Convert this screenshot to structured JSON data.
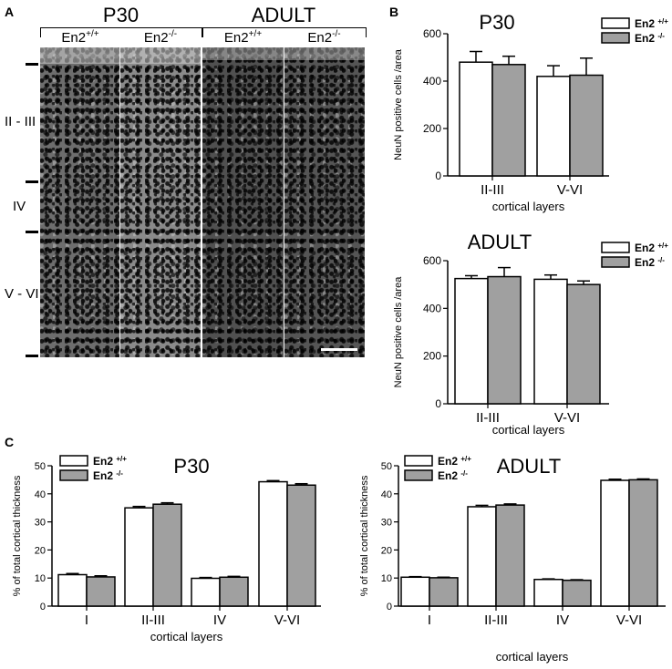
{
  "panel_A": {
    "letter": "A",
    "titles": [
      "P30",
      "ADULT"
    ],
    "genotypes": [
      {
        "base": "En2",
        "sup": "+/+"
      },
      {
        "base": "En2",
        "sup": "-/-"
      },
      {
        "base": "En2",
        "sup": "+/+"
      },
      {
        "base": "En2",
        "sup": "-/-"
      }
    ],
    "layers": [
      "II - III",
      "IV",
      "V - VI"
    ]
  },
  "panel_B_letter": "B",
  "panel_C_letter": "C",
  "legend": {
    "wt": {
      "base": "En2",
      "sup": "+/+"
    },
    "ko": {
      "base": "En2",
      "sup": "-/-"
    },
    "wt_color": "#ffffff",
    "ko_color": "#a0a0a0"
  },
  "chart_data": [
    {
      "type": "bar",
      "title": "P30",
      "xlabel": "cortical layers",
      "ylabel": "NeuN positive cells /area",
      "categories": [
        "II-III",
        "V-VI"
      ],
      "ylim": [
        0,
        600
      ],
      "yticks": [
        0,
        200,
        400,
        600
      ],
      "series": [
        {
          "name": "En2 +/+",
          "values": [
            480,
            420
          ],
          "errors": [
            45,
            45
          ]
        },
        {
          "name": "En2 -/-",
          "values": [
            470,
            425
          ],
          "errors": [
            35,
            72
          ]
        }
      ]
    },
    {
      "type": "bar",
      "title": "ADULT",
      "xlabel": "cortical layers",
      "ylabel": "NeuN positive cells /area",
      "categories": [
        "II-III",
        "V-VI"
      ],
      "ylim": [
        0,
        600
      ],
      "yticks": [
        0,
        200,
        400,
        600
      ],
      "series": [
        {
          "name": "En2 +/+",
          "values": [
            525,
            522
          ],
          "errors": [
            12,
            18
          ]
        },
        {
          "name": "En2 -/-",
          "values": [
            533,
            500
          ],
          "errors": [
            38,
            15
          ]
        }
      ]
    },
    {
      "type": "bar",
      "title": "P30",
      "xlabel": "cortical layers",
      "ylabel": "% of total cortical thickness",
      "categories": [
        "I",
        "II-III",
        "IV",
        "V-VI"
      ],
      "ylim": [
        0,
        50
      ],
      "yticks": [
        0,
        10,
        20,
        30,
        40,
        50
      ],
      "series": [
        {
          "name": "En2 +/+",
          "values": [
            11.2,
            35.0,
            9.9,
            44.3
          ],
          "errors": [
            0.4,
            0.5,
            0.3,
            0.4
          ]
        },
        {
          "name": "En2 -/-",
          "values": [
            10.4,
            36.3,
            10.3,
            43.1
          ],
          "errors": [
            0.4,
            0.5,
            0.3,
            0.5
          ]
        }
      ]
    },
    {
      "type": "bar",
      "title": "ADULT",
      "xlabel": "cortical layers",
      "ylabel": "% of total cortical thickness",
      "categories": [
        "I",
        "II-III",
        "IV",
        "V-VI"
      ],
      "ylim": [
        0,
        50
      ],
      "yticks": [
        0,
        10,
        20,
        30,
        40,
        50
      ],
      "series": [
        {
          "name": "En2 +/+",
          "values": [
            10.3,
            35.4,
            9.5,
            44.8
          ],
          "errors": [
            0.2,
            0.5,
            0.2,
            0.4
          ]
        },
        {
          "name": "En2 -/-",
          "values": [
            10.1,
            36.0,
            9.2,
            45.0
          ],
          "errors": [
            0.2,
            0.4,
            0.2,
            0.3
          ]
        }
      ]
    }
  ]
}
